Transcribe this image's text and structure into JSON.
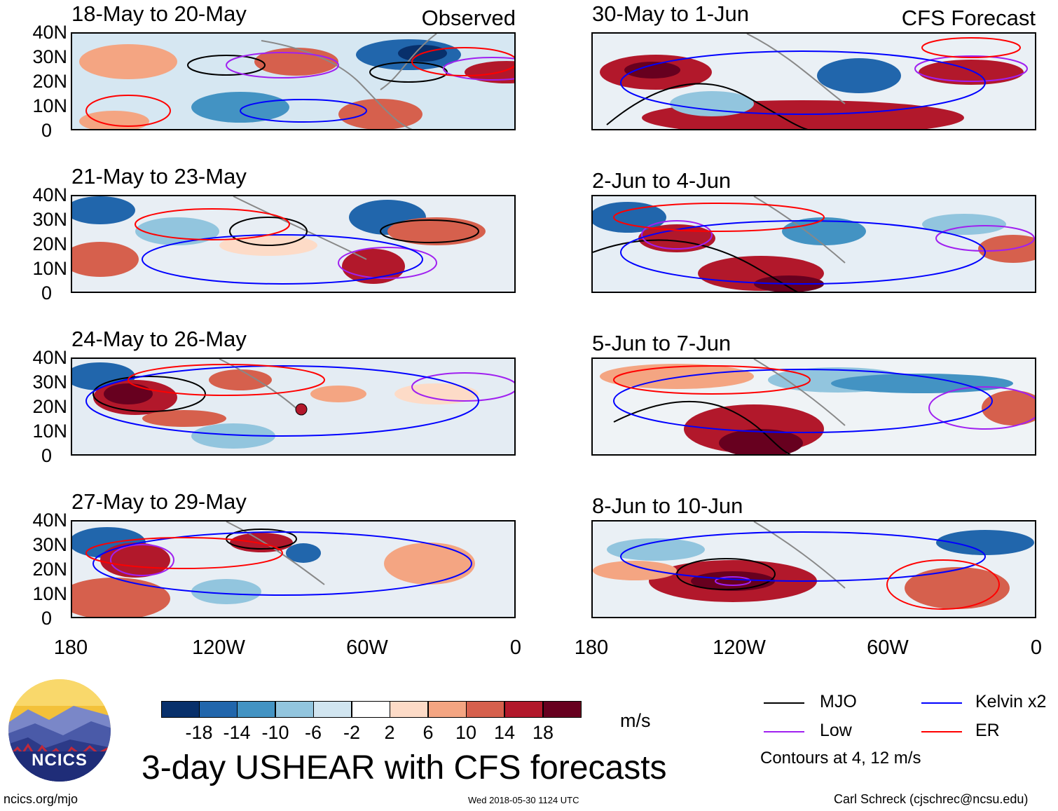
{
  "header": {
    "observed_label": "Observed",
    "forecast_label": "CFS Forecast"
  },
  "panels": [
    {
      "title": "18-May to 20-May",
      "column": "observed"
    },
    {
      "title": "21-May to 23-May",
      "column": "observed"
    },
    {
      "title": "24-May to 26-May",
      "column": "observed"
    },
    {
      "title": "27-May to 29-May",
      "column": "observed"
    },
    {
      "title": "30-May to 1-Jun",
      "column": "forecast"
    },
    {
      "title": "2-Jun to 4-Jun",
      "column": "forecast"
    },
    {
      "title": "5-Jun to 7-Jun",
      "column": "forecast"
    },
    {
      "title": "8-Jun to 10-Jun",
      "column": "forecast"
    }
  ],
  "axes": {
    "lat_labels": [
      "40N",
      "30N",
      "20N",
      "10N",
      "0"
    ],
    "lon_labels": [
      "180",
      "120W",
      "60W",
      "0"
    ]
  },
  "colorbar": {
    "unit": "m/s",
    "tick_labels": [
      "-18",
      "-14",
      "-10",
      "-6",
      "-2",
      "2",
      "6",
      "10",
      "14",
      "18"
    ],
    "colors": [
      "#08306b",
      "#2166ac",
      "#4393c3",
      "#92c5de",
      "#d1e5f0",
      "#ffffff",
      "#fddbc7",
      "#f4a582",
      "#d6604d",
      "#b2182b",
      "#67001f"
    ]
  },
  "legend": {
    "items": [
      {
        "label": "MJO",
        "color": "#000000"
      },
      {
        "label": "Kelvin x2",
        "color": "#0000ff"
      },
      {
        "label": "Low",
        "color": "#a020f0"
      },
      {
        "label": "ER",
        "color": "#ff0000"
      }
    ],
    "note": "Contours at 4, 12 m/s"
  },
  "main_title": "3-day USHEAR with CFS forecasts",
  "logo_text": "NCICS",
  "footer": {
    "website": "ncics.org/mjo",
    "timestamp": "Wed 2018-05-30 1124 UTC",
    "credit": "Carl Schreck (cjschrec@ncsu.edu)"
  }
}
